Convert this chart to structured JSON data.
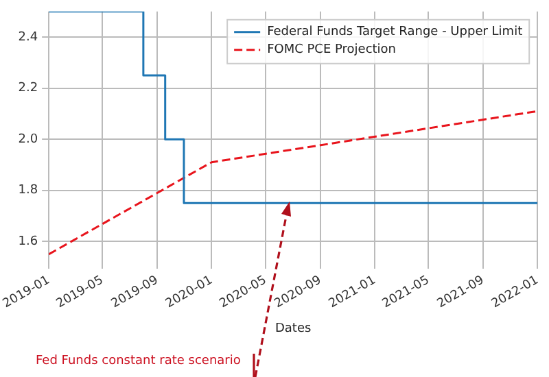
{
  "chart_data": {
    "type": "step",
    "xlabel": "Dates",
    "annotations": [
      "Fed Funds constant rate scenario"
    ],
    "series": [
      {
        "name": "Federal Funds Target Range - Upper Limit",
        "color": "#1f77b4",
        "x": [
          "2019-01-01",
          "2019-08-01",
          "2019-09-19",
          "2019-10-31",
          "2022-01-01"
        ],
        "values": [
          2.5,
          2.25,
          2.0,
          1.75,
          1.75
        ]
      },
      {
        "name": "FOMC PCE Projection",
        "type": "line",
        "line_style": "dashed",
        "color": "#e8141c",
        "x": [
          "2019-01-01",
          "2020-01-01",
          "2022-01-01"
        ],
        "values": [
          1.55,
          1.91,
          2.11
        ]
      }
    ],
    "xlim": [
      "2019-01-01",
      "2022-01-01"
    ],
    "xticks": [
      {
        "value": "2019-01",
        "label": "2019-01"
      },
      {
        "value": "2019-05",
        "label": "2019-05"
      },
      {
        "value": "2019-09",
        "label": "2019-09"
      },
      {
        "value": "2020-01",
        "label": "2020-01"
      },
      {
        "value": "2020-05",
        "label": "2020-05"
      },
      {
        "value": "2020-09",
        "label": "2020-09"
      },
      {
        "value": "2021-01",
        "label": "2021-01"
      },
      {
        "value": "2021-05",
        "label": "2021-05"
      },
      {
        "value": "2021-09",
        "label": "2021-09"
      },
      {
        "value": "2022-01",
        "label": "2022-01"
      }
    ],
    "ylim": [
      1.52,
      2.5
    ],
    "yticks": [
      {
        "value": 1.6,
        "label": "1.6"
      },
      {
        "value": 1.8,
        "label": "1.8"
      },
      {
        "value": 2.0,
        "label": "2.0"
      },
      {
        "value": 2.2,
        "label": "2.2"
      },
      {
        "value": 2.4,
        "label": "2.4"
      }
    ],
    "grid": true,
    "legend": "top right"
  }
}
